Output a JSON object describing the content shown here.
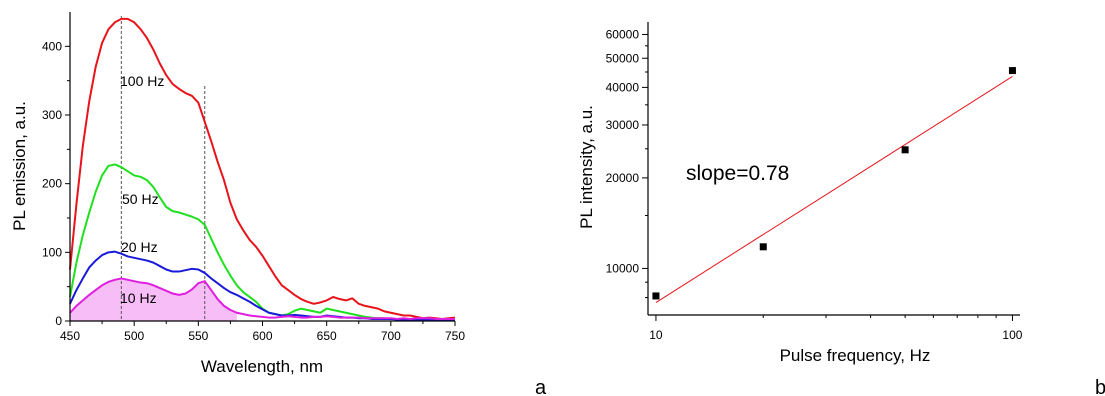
{
  "chart_data": [
    {
      "panel": "a",
      "type": "line",
      "xlabel": "Wavelength, nm",
      "ylabel": "PL emission, a.u.",
      "xlim": [
        450,
        750
      ],
      "ylim": [
        0,
        450
      ],
      "xticks": [
        "450",
        "500",
        "550",
        "600",
        "650",
        "700",
        "750"
      ],
      "yticks": [
        "0",
        "100",
        "200",
        "300",
        "400"
      ],
      "reference_lines_x": [
        490,
        555
      ],
      "series": [
        {
          "name": "100 Hz",
          "color": "#e8141a",
          "x": [
            450,
            455,
            460,
            465,
            470,
            475,
            480,
            485,
            490,
            495,
            500,
            505,
            510,
            515,
            520,
            525,
            530,
            535,
            540,
            545,
            550,
            555,
            560,
            565,
            570,
            575,
            580,
            585,
            590,
            595,
            600,
            605,
            610,
            615,
            620,
            625,
            630,
            635,
            640,
            645,
            650,
            655,
            660,
            665,
            670,
            675,
            680,
            685,
            690,
            695,
            700,
            705,
            710,
            715,
            720,
            725,
            730,
            735,
            740,
            745,
            750
          ],
          "values": [
            75,
            170,
            255,
            320,
            370,
            405,
            425,
            435,
            440,
            440,
            435,
            425,
            412,
            395,
            375,
            358,
            345,
            338,
            332,
            328,
            318,
            290,
            262,
            232,
            205,
            172,
            148,
            132,
            118,
            108,
            95,
            80,
            65,
            52,
            45,
            38,
            32,
            28,
            25,
            27,
            30,
            35,
            32,
            30,
            33,
            25,
            22,
            20,
            18,
            14,
            12,
            10,
            8,
            8,
            6,
            4,
            5,
            4,
            3,
            4,
            5
          ]
        },
        {
          "name": "50 Hz",
          "color": "#1ee01e",
          "x": [
            450,
            455,
            460,
            465,
            470,
            475,
            480,
            485,
            490,
            495,
            500,
            505,
            510,
            515,
            520,
            525,
            530,
            535,
            540,
            545,
            550,
            555,
            560,
            565,
            570,
            575,
            580,
            585,
            590,
            595,
            600,
            605,
            610,
            615,
            620,
            625,
            630,
            635,
            640,
            645,
            650,
            655,
            660,
            665,
            670,
            675,
            680,
            685,
            690,
            695,
            700,
            705,
            710,
            715,
            720,
            725,
            730,
            735,
            740,
            745,
            750
          ],
          "values": [
            35,
            85,
            125,
            158,
            188,
            212,
            226,
            228,
            224,
            218,
            212,
            210,
            205,
            195,
            180,
            166,
            160,
            158,
            155,
            152,
            148,
            140,
            120,
            100,
            82,
            66,
            52,
            42,
            35,
            28,
            18,
            12,
            10,
            8,
            10,
            15,
            18,
            16,
            14,
            12,
            18,
            16,
            14,
            12,
            10,
            8,
            6,
            5,
            4,
            4,
            3,
            3,
            2,
            2,
            2,
            2,
            2,
            2,
            2,
            2,
            2
          ]
        },
        {
          "name": "20 Hz",
          "color": "#1a1adb",
          "x": [
            450,
            455,
            460,
            465,
            470,
            475,
            480,
            485,
            490,
            495,
            500,
            505,
            510,
            515,
            520,
            525,
            530,
            535,
            540,
            545,
            550,
            555,
            560,
            565,
            570,
            575,
            580,
            585,
            590,
            595,
            600,
            605,
            610,
            615,
            620,
            625,
            630,
            635,
            640,
            645,
            650,
            655,
            660,
            665,
            670,
            675,
            680,
            685,
            690,
            695,
            700,
            705,
            710,
            715,
            720,
            725,
            730,
            735,
            740,
            745,
            750
          ],
          "values": [
            25,
            45,
            62,
            78,
            88,
            96,
            100,
            101,
            98,
            94,
            92,
            90,
            88,
            85,
            80,
            75,
            72,
            72,
            74,
            76,
            75,
            70,
            62,
            55,
            48,
            42,
            38,
            33,
            28,
            22,
            17,
            12,
            10,
            8,
            8,
            9,
            8,
            7,
            6,
            6,
            8,
            7,
            6,
            5,
            5,
            4,
            4,
            3,
            3,
            3,
            3,
            2,
            2,
            2,
            2,
            2,
            2,
            2,
            2,
            2,
            2
          ]
        },
        {
          "name": "10 Hz",
          "color": "#e01ee0",
          "x": [
            450,
            455,
            460,
            465,
            470,
            475,
            480,
            485,
            490,
            495,
            500,
            505,
            510,
            515,
            520,
            525,
            530,
            535,
            540,
            545,
            550,
            555,
            560,
            565,
            570,
            575,
            580,
            585,
            590,
            595,
            600,
            605,
            610,
            615,
            620,
            625,
            630,
            635,
            640,
            645,
            650,
            655,
            660,
            665,
            670,
            675,
            680,
            685,
            690,
            695,
            700,
            705,
            710,
            715,
            720,
            725,
            730,
            735,
            740,
            745,
            750
          ],
          "values": [
            12,
            22,
            30,
            38,
            45,
            52,
            57,
            60,
            62,
            60,
            58,
            56,
            55,
            52,
            48,
            44,
            40,
            38,
            40,
            46,
            55,
            58,
            45,
            32,
            22,
            16,
            12,
            10,
            8,
            7,
            6,
            5,
            5,
            6,
            7,
            6,
            5,
            5,
            6,
            6,
            7,
            6,
            5,
            5,
            5,
            5,
            4,
            4,
            4,
            4,
            4,
            3,
            4,
            3,
            4,
            4,
            4,
            3,
            3,
            3,
            3
          ]
        }
      ],
      "series_labels": [
        "100 Hz",
        "50 Hz",
        "20 Hz",
        "10 Hz"
      ],
      "filled_area_color": "#f29af2",
      "panel_letter": "a"
    },
    {
      "panel": "b",
      "type": "scatter",
      "xlabel": "Pulse frequency, Hz",
      "ylabel": "PL intensity, a.u.",
      "xscale": "log",
      "yscale": "log",
      "xlim": [
        9.5,
        105
      ],
      "ylim": [
        7000,
        66000
      ],
      "xticks": [
        10,
        100
      ],
      "xtick_labels": [
        "10",
        "100"
      ],
      "yticks": [
        10000,
        20000,
        30000,
        40000,
        50000,
        60000
      ],
      "ytick_labels": [
        "10000",
        "20000",
        "30000",
        "40000",
        "50000",
        "60000"
      ],
      "points": [
        {
          "x": 10,
          "y": 8100
        },
        {
          "x": 20,
          "y": 11800
        },
        {
          "x": 50,
          "y": 24800
        },
        {
          "x": 100,
          "y": 45500
        }
      ],
      "fit_line": {
        "x": [
          10,
          100
        ],
        "y": [
          7700,
          43500
        ],
        "color": "#e8141a"
      },
      "annotation": "slope=0.78",
      "marker_color": "#000000",
      "panel_letter": "b"
    }
  ]
}
